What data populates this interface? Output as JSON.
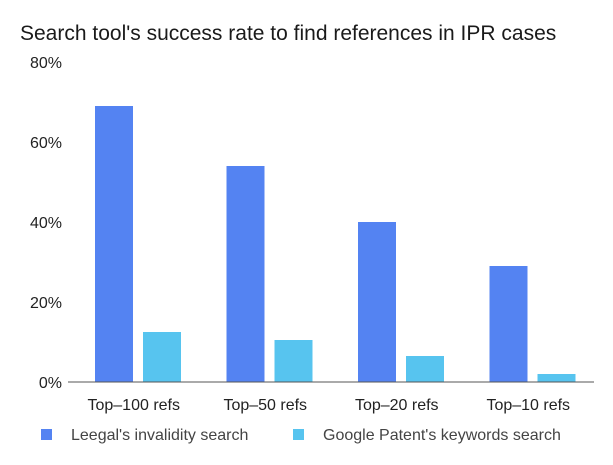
{
  "chart_data": {
    "type": "bar",
    "title": "Search tool's success rate to find references in IPR cases",
    "xlabel": "",
    "ylabel": "",
    "ylim": [
      0,
      80
    ],
    "yticks": [
      0,
      20,
      40,
      60,
      80
    ],
    "ytick_labels": [
      "0%",
      "20%",
      "40%",
      "60%",
      "80%"
    ],
    "grid": false,
    "legend_position": "bottom",
    "categories": [
      "Top–100 refs",
      "Top–50 refs",
      "Top–20 refs",
      "Top–10 refs"
    ],
    "series": [
      {
        "name": "Leegal's invalidity search",
        "color": "#5483f2",
        "values": [
          69,
          54,
          40,
          29
        ]
      },
      {
        "name": "Google Patent's keywords search",
        "color": "#57c4ef",
        "values": [
          12.5,
          10.5,
          6.5,
          2
        ]
      }
    ]
  }
}
